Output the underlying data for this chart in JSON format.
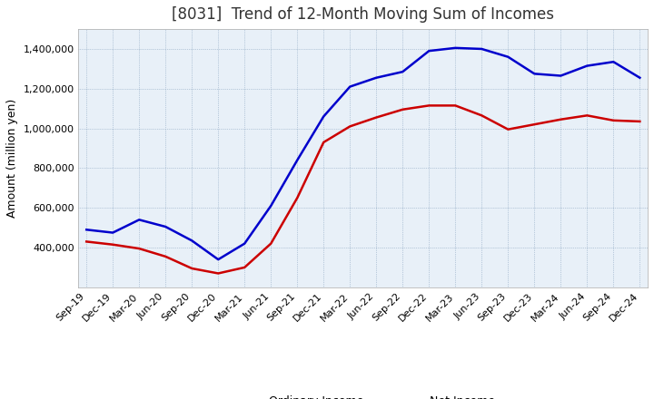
{
  "title": "[8031]  Trend of 12-Month Moving Sum of Incomes",
  "ylabel": "Amount (million yen)",
  "x_labels": [
    "Sep-19",
    "Dec-19",
    "Mar-20",
    "Jun-20",
    "Sep-20",
    "Dec-20",
    "Mar-21",
    "Jun-21",
    "Sep-21",
    "Dec-21",
    "Mar-22",
    "Jun-22",
    "Sep-22",
    "Dec-22",
    "Mar-23",
    "Jun-23",
    "Sep-23",
    "Dec-23",
    "Mar-24",
    "Jun-24",
    "Sep-24",
    "Dec-24"
  ],
  "ordinary_income": [
    490000,
    475000,
    540000,
    505000,
    435000,
    340000,
    420000,
    610000,
    840000,
    1060000,
    1210000,
    1255000,
    1285000,
    1390000,
    1405000,
    1400000,
    1360000,
    1275000,
    1265000,
    1315000,
    1335000,
    1255000
  ],
  "net_income": [
    430000,
    415000,
    395000,
    355000,
    295000,
    270000,
    300000,
    420000,
    650000,
    930000,
    1010000,
    1055000,
    1095000,
    1115000,
    1115000,
    1065000,
    995000,
    1020000,
    1045000,
    1065000,
    1040000,
    1035000
  ],
  "ordinary_color": "#0000cc",
  "net_color": "#cc0000",
  "ylim_min": 200000,
  "ylim_max": 1500000,
  "yticks": [
    400000,
    600000,
    800000,
    1000000,
    1200000,
    1400000
  ],
  "bg_color": "#e8f0f8",
  "fig_bg_color": "#ffffff",
  "grid_color": "#7090b0",
  "title_fontsize": 12,
  "axis_fontsize": 9,
  "tick_fontsize": 8,
  "legend_fontsize": 9,
  "line_width": 1.8
}
